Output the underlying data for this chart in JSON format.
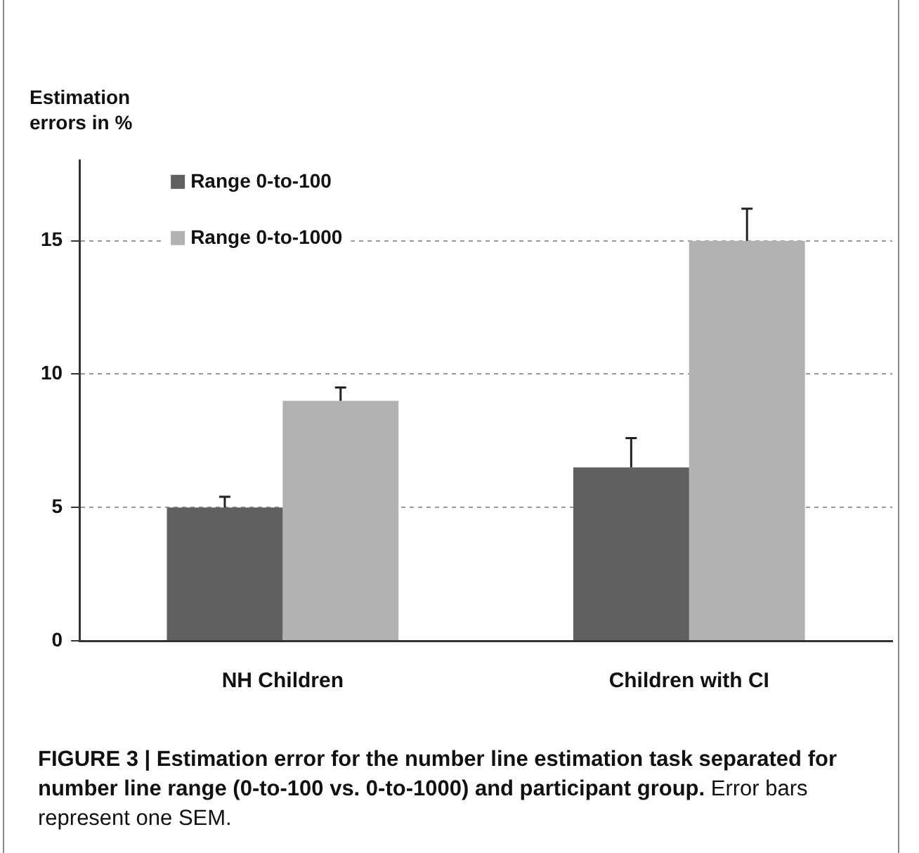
{
  "chart_data": {
    "type": "bar",
    "ylabel": "Estimation errors in %",
    "categories": [
      "NH Children",
      "Children with CI"
    ],
    "series": [
      {
        "name": "Range 0-to-100",
        "color": "#606060",
        "values": [
          5,
          6.5
        ],
        "errors": [
          [
            5,
            5.4
          ],
          [
            6.5,
            7.6
          ]
        ]
      },
      {
        "name": "Range 0-to-1000",
        "color": "#b2b2b2",
        "values": [
          9,
          15
        ],
        "errors": [
          [
            9,
            9.5
          ],
          [
            15,
            16.2
          ]
        ]
      }
    ],
    "ylim": [
      0,
      18
    ],
    "yticks": [
      0,
      5,
      10,
      15
    ],
    "grid": "y",
    "legend": "top left",
    "annotations": [
      "FIGURE 3 | Estimation error for the number line estimation task separated for number line range (0-to-100 vs. 0-to-1000) and participant group.",
      "Error bars represent one SEM."
    ]
  }
}
